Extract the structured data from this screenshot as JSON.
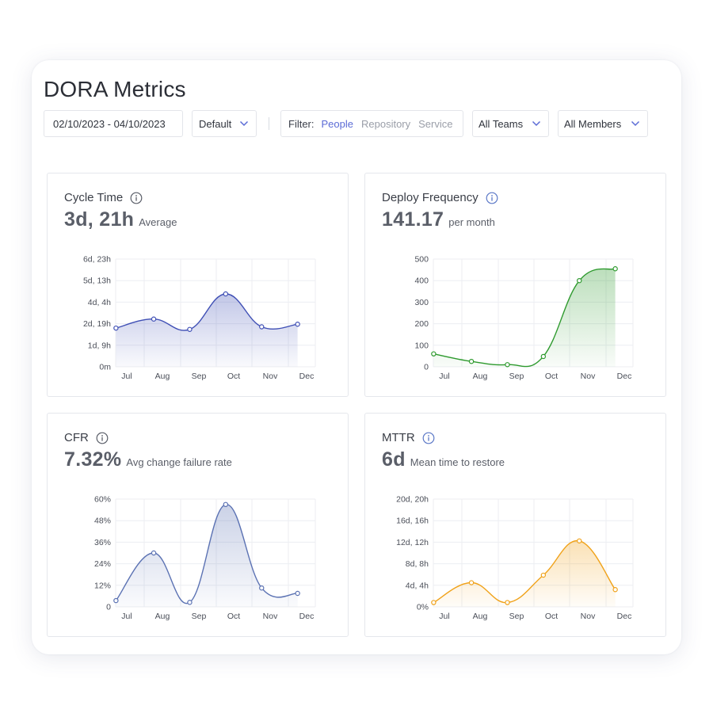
{
  "header": {
    "title": "DORA Metrics",
    "date_range": "02/10/2023 - 04/10/2023",
    "preset": "Default",
    "filter_label": "Filter:",
    "filter_options": [
      "People",
      "Repository",
      "Service"
    ],
    "filter_active": "People",
    "teams": "All Teams",
    "members": "All Members"
  },
  "panels": [
    {
      "title": "Cycle Time",
      "value": "3d, 21h",
      "caption": "Average"
    },
    {
      "title": "Deploy Frequency",
      "value": "141.17",
      "caption": "per month"
    },
    {
      "title": "CFR",
      "value": "7.32%",
      "caption": "Avg change failure rate"
    },
    {
      "title": "MTTR",
      "value": "6d",
      "caption": "Mean time to restore"
    }
  ],
  "colors": {
    "accent": "#5b6bd6",
    "cycle_time": "#3f4fb5",
    "deploy_frequency": "#2e9a2e",
    "cfr": "#5b72b3",
    "mttr": "#f0a21a",
    "info_blue": "#5b78c7",
    "info_gray": "#5a5e68"
  },
  "icons": {
    "info": "info-circle-icon",
    "chevron": "chevron-down-icon"
  },
  "chart_data": [
    {
      "type": "area",
      "categories": [
        "Jul",
        "Aug",
        "Sep",
        "Oct",
        "Nov",
        "Dec"
      ],
      "x": [
        0,
        1,
        2,
        3,
        4,
        5
      ],
      "series": [
        {
          "x": [
            -0.3,
            0.75,
            1.75,
            2.75,
            3.75,
            4.75
          ],
          "values": [
            60,
            74,
            58,
            113,
            62,
            66
          ]
        }
      ],
      "yticks": [
        "0m",
        "1d, 9h",
        "2d, 19h",
        "4d, 4h",
        "5d, 13h",
        "6d, 23h"
      ],
      "ylim": [
        0,
        167
      ],
      "ylim_hours": [
        0,
        167
      ],
      "value_unit": "hours"
    },
    {
      "type": "area",
      "categories": [
        "Jul",
        "Aug",
        "Sep",
        "Oct",
        "Nov",
        "Dec"
      ],
      "series": [
        {
          "x": [
            -0.3,
            0.75,
            1.75,
            2.75,
            3.75,
            4.75
          ],
          "values": [
            60,
            25,
            10,
            48,
            400,
            455
          ]
        }
      ],
      "yticks": [
        "0",
        "100",
        "200",
        "300",
        "400",
        "500"
      ],
      "ylim": [
        0,
        500
      ]
    },
    {
      "type": "area",
      "categories": [
        "Jul",
        "Aug",
        "Sep",
        "Oct",
        "Nov",
        "Dec"
      ],
      "series": [
        {
          "x": [
            -0.3,
            0.75,
            1.75,
            2.75,
            3.75,
            4.75
          ],
          "values": [
            3.5,
            30,
            2.5,
            57,
            10.5,
            7.5
          ]
        }
      ],
      "yticks": [
        "0",
        "12%",
        "24%",
        "36%",
        "48%",
        "60%"
      ],
      "ylim": [
        0,
        60
      ],
      "value_unit": "percent"
    },
    {
      "type": "area",
      "categories": [
        "Jul",
        "Aug",
        "Sep",
        "Oct",
        "Nov",
        "Dec"
      ],
      "series": [
        {
          "x": [
            -0.3,
            0.75,
            1.75,
            2.75,
            3.75,
            4.75
          ],
          "values": [
            20,
            112,
            20,
            147,
            306,
            80
          ]
        }
      ],
      "yticks": [
        "0%",
        "4d, 4h",
        "8d, 8h",
        "12d, 12h",
        "16d, 16h",
        "20d, 20h"
      ],
      "ylim": [
        0,
        500
      ],
      "value_unit": "hours"
    }
  ]
}
